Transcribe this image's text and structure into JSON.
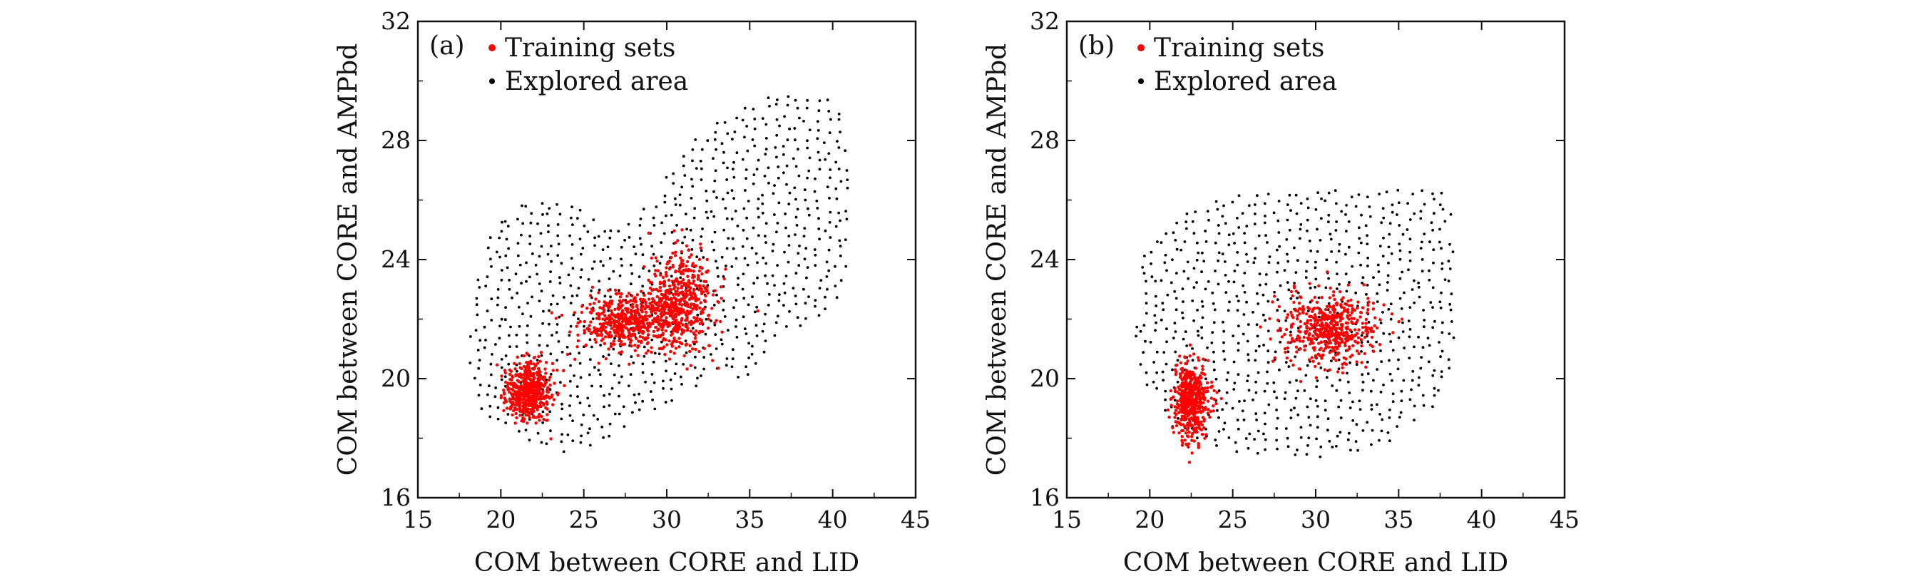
{
  "chart_data": [
    {
      "type": "scatter",
      "panel_label": "(a)",
      "xlabel": "COM between CORE and LID",
      "ylabel": "COM between CORE and AMPbd",
      "xlim": [
        15,
        45
      ],
      "ylim": [
        16,
        32
      ],
      "xticks": [
        15,
        20,
        25,
        30,
        35,
        40,
        45
      ],
      "yticks": [
        16,
        20,
        24,
        28,
        32
      ],
      "grid": false,
      "legend_position": "top-left",
      "series": [
        {
          "name": "Explored area",
          "color": "#000000",
          "region_boundary": [
            [
              18.2,
              19.2
            ],
            [
              19.0,
              18.7
            ],
            [
              20.5,
              18.2
            ],
            [
              22.0,
              17.8
            ],
            [
              24.0,
              17.5
            ],
            [
              25.5,
              17.7
            ],
            [
              27.0,
              18.2
            ],
            [
              29.0,
              18.8
            ],
            [
              31.0,
              19.5
            ],
            [
              33.0,
              20.1
            ],
            [
              35.0,
              20.0
            ],
            [
              37.0,
              21.5
            ],
            [
              39.0,
              22.0
            ],
            [
              40.5,
              22.5
            ],
            [
              41.0,
              24.0
            ],
            [
              41.0,
              27.0
            ],
            [
              40.5,
              29.0
            ],
            [
              39.5,
              29.7
            ],
            [
              37.0,
              29.7
            ],
            [
              34.0,
              29.0
            ],
            [
              31.5,
              28.0
            ],
            [
              29.0,
              26.0
            ],
            [
              27.0,
              25.0
            ],
            [
              25.0,
              25.8
            ],
            [
              23.5,
              26.2
            ],
            [
              21.5,
              26.0
            ],
            [
              19.5,
              25.2
            ],
            [
              18.5,
              23.5
            ],
            [
              18.0,
              21.5
            ]
          ]
        },
        {
          "name": "Training sets",
          "color": "#ff0000",
          "clusters": [
            {
              "x": 21.7,
              "y": 19.6,
              "sx": 0.7,
              "sy": 0.5
            },
            {
              "x": 27.5,
              "y": 21.9,
              "sx": 1.3,
              "sy": 0.45
            },
            {
              "x": 30.8,
              "y": 22.6,
              "sx": 1.0,
              "sy": 0.85
            }
          ]
        }
      ]
    },
    {
      "type": "scatter",
      "panel_label": "(b)",
      "xlabel": "COM between CORE and LID",
      "ylabel": "COM between CORE and AMPbd",
      "xlim": [
        15,
        45
      ],
      "ylim": [
        16,
        32
      ],
      "xticks": [
        15,
        20,
        25,
        30,
        35,
        40,
        45
      ],
      "yticks": [
        16,
        20,
        24,
        28,
        32
      ],
      "grid": false,
      "legend_position": "top-left",
      "series": [
        {
          "name": "Explored area",
          "color": "#000000",
          "region_boundary": [
            [
              21.0,
              18.5
            ],
            [
              23.0,
              17.8
            ],
            [
              25.0,
              17.5
            ],
            [
              27.0,
              17.3
            ],
            [
              30.0,
              17.3
            ],
            [
              33.0,
              17.6
            ],
            [
              35.0,
              18.0
            ],
            [
              37.0,
              19.0
            ],
            [
              38.3,
              20.5
            ],
            [
              38.5,
              23.0
            ],
            [
              38.2,
              25.5
            ],
            [
              37.5,
              26.5
            ],
            [
              35.0,
              26.4
            ],
            [
              32.0,
              26.5
            ],
            [
              29.0,
              26.3
            ],
            [
              26.0,
              26.2
            ],
            [
              23.5,
              26.0
            ],
            [
              21.0,
              25.2
            ],
            [
              19.5,
              24.0
            ],
            [
              19.0,
              22.0
            ],
            [
              19.3,
              20.5
            ],
            [
              20.0,
              19.5
            ]
          ]
        },
        {
          "name": "Training sets",
          "color": "#ff0000",
          "clusters": [
            {
              "x": 22.5,
              "y": 19.3,
              "sx": 0.55,
              "sy": 0.6
            },
            {
              "x": 30.8,
              "y": 21.7,
              "sx": 1.4,
              "sy": 0.6
            }
          ]
        }
      ]
    }
  ]
}
